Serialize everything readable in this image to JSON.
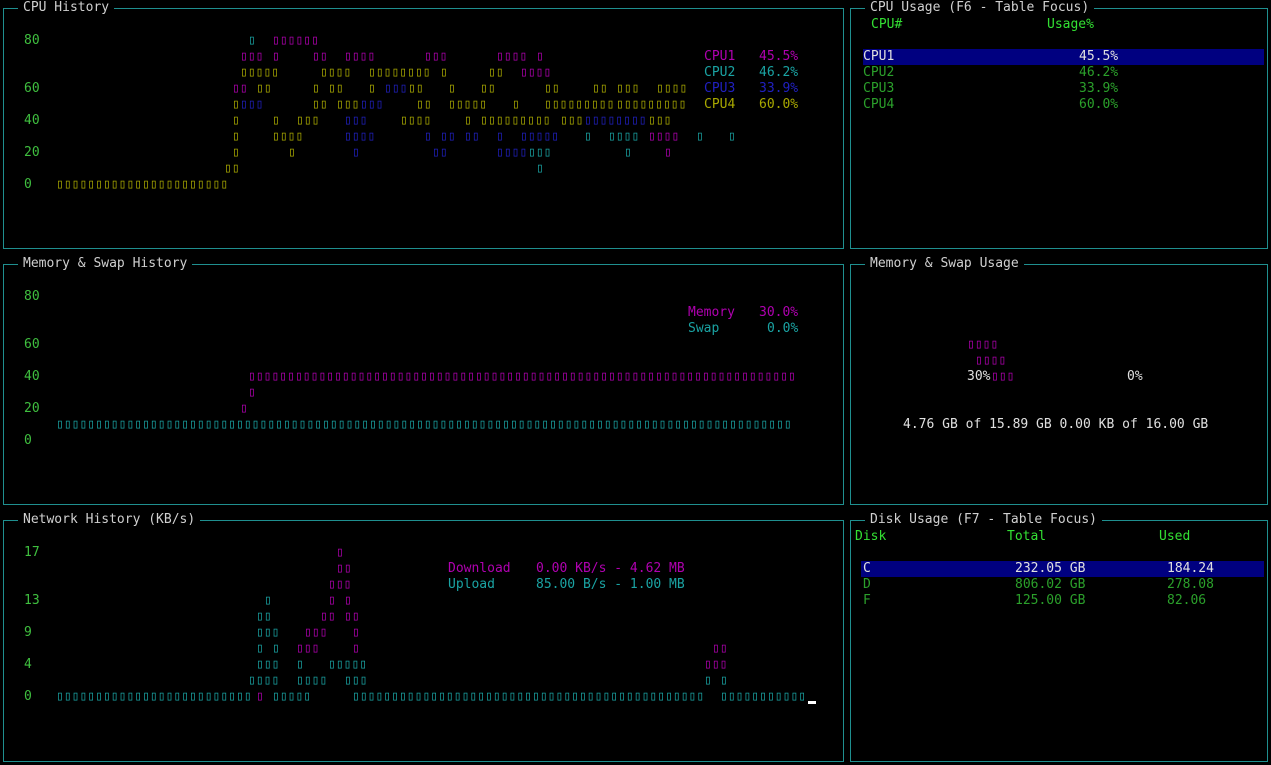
{
  "cpu_history": {
    "title": "CPU History",
    "y_ticks": [
      "80",
      "60",
      "40",
      "20",
      "0"
    ],
    "legend": [
      {
        "label": "CPU1",
        "value": "45.5%",
        "color": "#b000b0"
      },
      {
        "label": "CPU2",
        "value": "46.2%",
        "color": "#1aa3a3"
      },
      {
        "label": "CPU3",
        "value": "33.9%",
        "color": "#2020c0"
      },
      {
        "label": "CPU4",
        "value": "60.0%",
        "color": "#a8a800"
      }
    ]
  },
  "cpu_usage": {
    "title": "CPU Usage (F6 - Table Focus)",
    "headers": {
      "cpu": "CPU#",
      "usage": "Usage%"
    },
    "rows": [
      {
        "cpu": "CPU1",
        "usage": "45.5%"
      },
      {
        "cpu": "CPU2",
        "usage": "46.2%"
      },
      {
        "cpu": "CPU3",
        "usage": "33.9%"
      },
      {
        "cpu": "CPU4",
        "usage": "60.0%"
      }
    ]
  },
  "mem_history": {
    "title": "Memory & Swap History",
    "y_ticks": [
      "80",
      "60",
      "40",
      "20",
      "0"
    ],
    "legend": [
      {
        "label": "Memory",
        "value": "30.0%",
        "color": "#b000b0"
      },
      {
        "label": "Swap",
        "value": "0.0%",
        "color": "#1aa3a3"
      }
    ]
  },
  "mem_usage": {
    "title": "Memory & Swap Usage",
    "mem_pct": "30%",
    "swap_pct": "0%",
    "detail": "4.76 GB of 15.89 GB 0.00 KB of 16.00 GB"
  },
  "net_history": {
    "title": "Network History (KB/s)",
    "y_ticks": [
      "17",
      "13",
      "9",
      "4",
      "0"
    ],
    "legend": [
      {
        "label": "Download",
        "value": "0.00 KB/s - 4.62 MB",
        "color": "#b000b0"
      },
      {
        "label": "Upload",
        "value": "85.00 B/s - 1.00 MB",
        "color": "#1aa3a3"
      }
    ]
  },
  "disk_usage": {
    "title": "Disk Usage (F7 - Table Focus)",
    "headers": {
      "disk": "Disk",
      "total": "Total",
      "used": "Used"
    },
    "rows": [
      {
        "disk": "C",
        "total": "232.05 GB",
        "used": "184.24"
      },
      {
        "disk": "D",
        "total": "806.02 GB",
        "used": "278.08"
      },
      {
        "disk": "F",
        "total": "125.00 GB",
        "used": "82.06"
      }
    ]
  },
  "glyph": "▯",
  "colors": {
    "border": "#1f8f8f",
    "axis": "#3fbf3f",
    "selection": "#000080",
    "magenta": "#b000b0",
    "cyan": "#1aa3a3",
    "yellow": "#a8a800",
    "blue": "#2020c0"
  }
}
